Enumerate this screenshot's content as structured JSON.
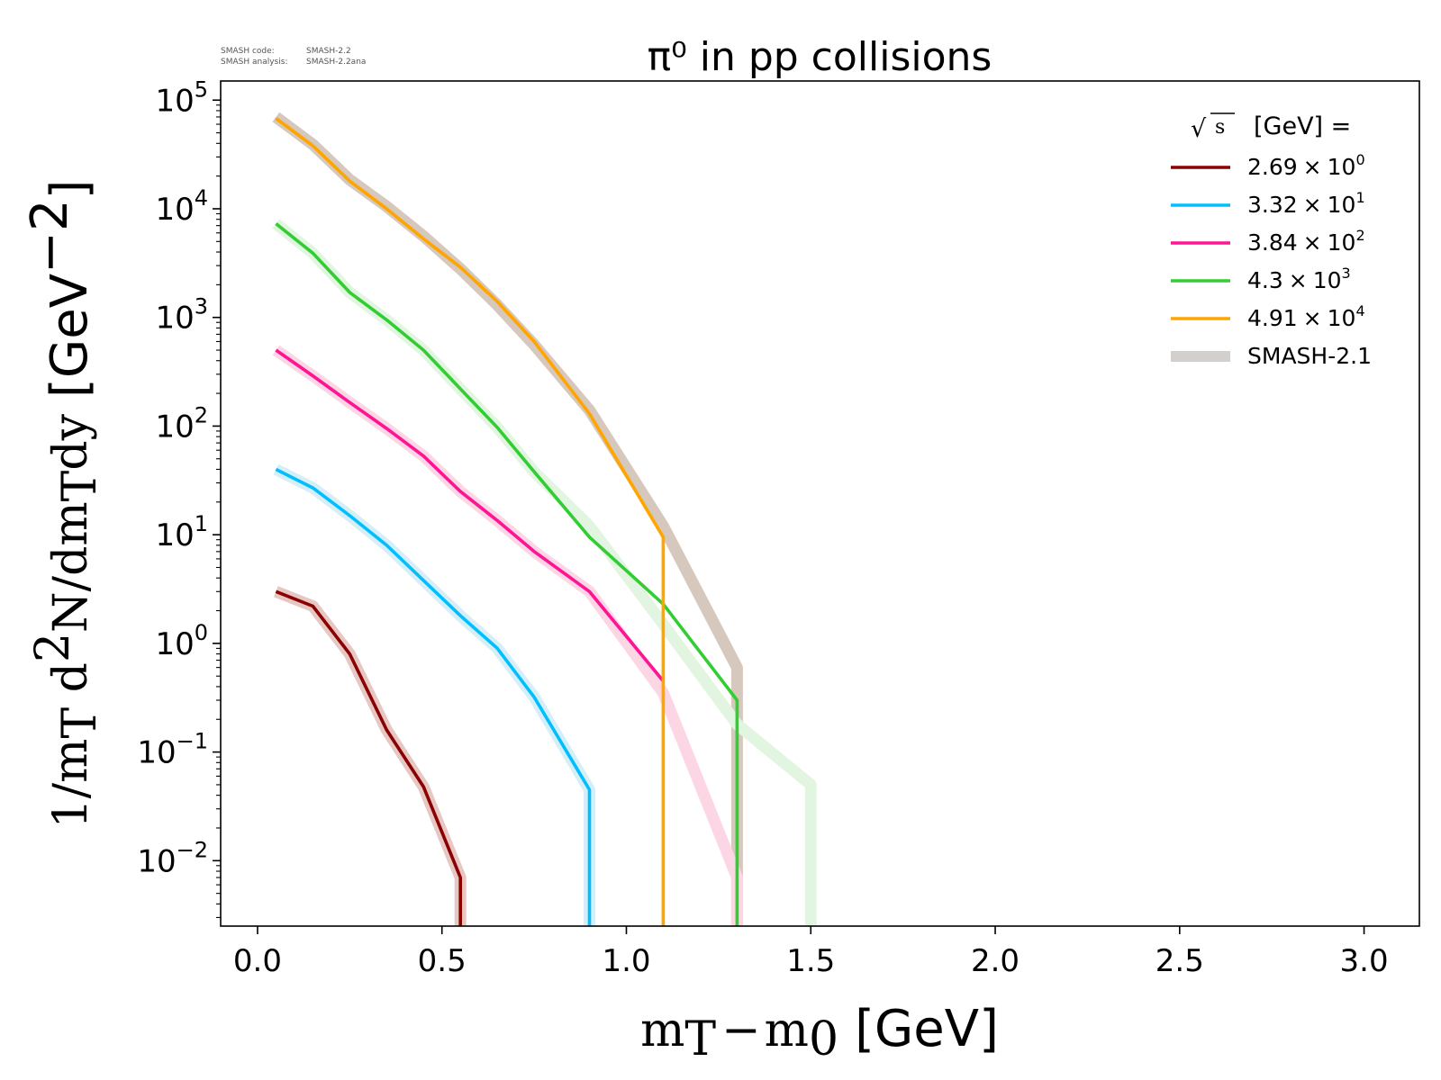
{
  "meta": {
    "code_label": "SMASH code:",
    "code_value": "SMASH-2.2",
    "analysis_label": "SMASH analysis:",
    "analysis_value": "SMASH-2.2ana"
  },
  "chart_data": {
    "type": "line",
    "title": "π⁰ in pp collisions",
    "xlabel": {
      "math": "m",
      "sub": "T",
      "minus": "−",
      "math2": "m",
      "sub2": "0",
      "unit": "[GeV]"
    },
    "ylabel": {
      "prefix": "1/m",
      "sub": "T",
      "mid": " d",
      "sup": "2",
      "rest": "N/dm",
      "sub2": "T",
      "rest2": "dy",
      "unit": "[GeV",
      "unit_sup": "−2",
      "unit_end": "]"
    },
    "xlim": [
      -0.1,
      3.15
    ],
    "ylim": [
      0.0025,
      150000
    ],
    "yscale": "log",
    "x_ticks": [
      0.0,
      0.5,
      1.0,
      1.5,
      2.0,
      2.5,
      3.0
    ],
    "x_tick_labels": [
      "0.0",
      "0.5",
      "1.0",
      "1.5",
      "2.0",
      "2.5",
      "3.0"
    ],
    "y_ticks": [
      {
        "value": 0.01,
        "base": "10",
        "exp": "−2"
      },
      {
        "value": 0.1,
        "base": "10",
        "exp": "−1"
      },
      {
        "value": 1,
        "base": "10",
        "exp": "0"
      },
      {
        "value": 10,
        "base": "10",
        "exp": "1"
      },
      {
        "value": 100,
        "base": "10",
        "exp": "2"
      },
      {
        "value": 1000,
        "base": "10",
        "exp": "3"
      },
      {
        "value": 10000,
        "base": "10",
        "exp": "4"
      },
      {
        "value": 100000,
        "base": "10",
        "exp": "5"
      }
    ],
    "legend": {
      "placement": "top-right",
      "title_radical": "√",
      "title_s": "s",
      "title_rest": "[GeV] =",
      "entries": [
        {
          "mantissa": "2.69",
          "times": "×",
          "base": "10",
          "exp": "0",
          "color": "#8b0000"
        },
        {
          "mantissa": "3.32",
          "times": "×",
          "base": "10",
          "exp": "1",
          "color": "#00bfff"
        },
        {
          "mantissa": "3.84",
          "times": "×",
          "base": "10",
          "exp": "2",
          "color": "#ff1493"
        },
        {
          "mantissa": "4.3",
          "times": "×",
          "base": "10",
          "exp": "3",
          "color": "#32cd32"
        },
        {
          "mantissa": "4.91",
          "times": "×",
          "base": "10",
          "exp": "4",
          "color": "#ffa500"
        },
        {
          "label": "SMASH-2.1",
          "color": "#d3cfcc",
          "reference": true
        }
      ]
    },
    "series": [
      {
        "legend_index": 0,
        "color": "#8b0000",
        "x": [
          0.05,
          0.15,
          0.25,
          0.35,
          0.45,
          0.55,
          0.55
        ],
        "y": [
          3.0,
          2.2,
          0.8,
          0.16,
          0.048,
          0.007,
          0.0025
        ]
      },
      {
        "legend_index": 1,
        "color": "#00bfff",
        "x": [
          0.05,
          0.15,
          0.25,
          0.35,
          0.45,
          0.55,
          0.65,
          0.75,
          0.9,
          0.9
        ],
        "y": [
          40,
          27,
          15,
          8,
          3.8,
          1.8,
          0.9,
          0.32,
          0.045,
          0.0025
        ]
      },
      {
        "legend_index": 2,
        "color": "#ff1493",
        "x": [
          0.05,
          0.15,
          0.25,
          0.35,
          0.45,
          0.55,
          0.65,
          0.75,
          0.9,
          1.1
        ],
        "y": [
          500,
          290,
          165,
          95,
          53,
          25,
          13.5,
          7,
          3,
          0.45
        ]
      },
      {
        "legend_index": 3,
        "color": "#32cd32",
        "x": [
          0.05,
          0.15,
          0.25,
          0.35,
          0.45,
          0.55,
          0.65,
          0.75,
          0.9,
          1.1,
          1.3,
          1.3
        ],
        "y": [
          7300,
          3900,
          1700,
          950,
          500,
          220,
          97,
          38,
          9.5,
          2.3,
          0.3,
          0.0025
        ]
      },
      {
        "legend_index": 4,
        "color": "#ffa500",
        "x": [
          0.05,
          0.15,
          0.25,
          0.35,
          0.45,
          0.55,
          0.65,
          0.75,
          0.9,
          1.1,
          1.1
        ],
        "y": [
          68000,
          38000,
          18000,
          10000,
          5300,
          2900,
          1400,
          600,
          130,
          9.5,
          0.0025
        ]
      }
    ],
    "reference_series": [
      {
        "color": "#d6c8bd",
        "x": [
          0.05,
          0.15,
          0.25,
          0.35,
          0.45,
          0.55,
          0.65,
          0.75,
          0.9,
          1.1,
          1.3,
          1.3
        ],
        "y": [
          70000,
          39000,
          18500,
          10500,
          5600,
          2800,
          1300,
          560,
          140,
          12,
          0.6,
          0.0025
        ]
      },
      {
        "color": "#e2f5e0",
        "x": [
          0.05,
          0.15,
          0.25,
          0.35,
          0.45,
          0.55,
          0.65,
          0.75,
          0.9,
          1.1,
          1.3,
          1.5,
          1.5
        ],
        "y": [
          7300,
          3900,
          1700,
          950,
          500,
          220,
          97,
          38,
          12,
          1.5,
          0.18,
          0.05,
          0.0025
        ]
      },
      {
        "color": "#fdd6e6",
        "x": [
          0.05,
          0.15,
          0.25,
          0.35,
          0.45,
          0.55,
          0.65,
          0.75,
          0.9,
          1.1,
          1.3,
          1.3
        ],
        "y": [
          500,
          290,
          165,
          95,
          53,
          25,
          13.5,
          7,
          3,
          0.35,
          0.007,
          0.0025
        ]
      },
      {
        "color": "#d6eef7",
        "x": [
          0.05,
          0.15,
          0.25,
          0.35,
          0.45,
          0.55,
          0.65,
          0.75,
          0.9,
          0.9
        ],
        "y": [
          40,
          27,
          15,
          8,
          3.8,
          1.8,
          0.9,
          0.32,
          0.045,
          0.0025
        ]
      },
      {
        "color": "#e7c7c3",
        "x": [
          0.05,
          0.15,
          0.25,
          0.35,
          0.45,
          0.55,
          0.55
        ],
        "y": [
          3.0,
          2.2,
          0.8,
          0.16,
          0.048,
          0.007,
          0.0025
        ]
      }
    ]
  }
}
